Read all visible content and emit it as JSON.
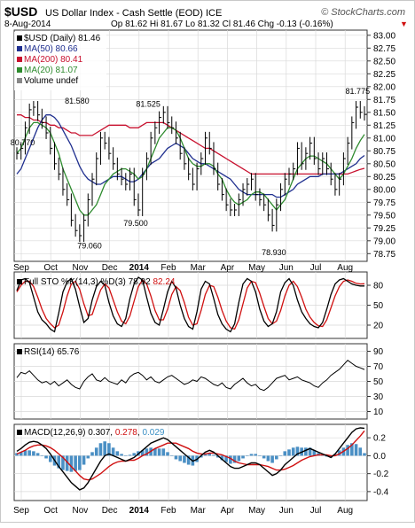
{
  "header": {
    "symbol": "$USD",
    "name": "US Dollar Index - Cash Settle (EOD) ICE",
    "brand": "© StockCharts.com",
    "date": "8-Aug-2014",
    "quote": "Op 81.62  Hi 81.67  Lo 81.32  Cl 81.46  Chg -0.13 (-0.16%)",
    "quote_arrow": "▼"
  },
  "legend": {
    "price": "$USD (Daily) 81.46",
    "ma50": "MA(50) 80.66",
    "ma200": "MA(200) 80.41",
    "ma20": "MA(20) 81.07",
    "volume": "Volume undef"
  },
  "indicators": {
    "sto_label": "Full STO %K(14,3) %D(3) ",
    "sto_k": "78.92",
    "sto_d": "82.24",
    "rsi_label": "RSI(14) 65.76",
    "macd_label": "MACD(12,26,9) ",
    "macd": "0.307",
    "signal": "0.278",
    "hist": "0.029"
  },
  "annotations": [
    {
      "text": "80.770",
      "x": 1,
      "y": 80.77
    },
    {
      "text": "81.580",
      "x": 14,
      "y": 81.58
    },
    {
      "text": "81.525",
      "x": 31,
      "y": 81.525
    },
    {
      "text": "79.060",
      "x": 17,
      "y": 79.06
    },
    {
      "text": "79.500",
      "x": 28,
      "y": 79.5
    },
    {
      "text": "78.930",
      "x": 61,
      "y": 78.93
    },
    {
      "text": "81.775",
      "x": 81,
      "y": 81.775
    }
  ],
  "month_labels": [
    "Sep",
    "Oct",
    "Nov",
    "Dec",
    "2014",
    "Feb",
    "Mar",
    "Apr",
    "May",
    "Jun",
    "Jul",
    "Aug"
  ],
  "colors": {
    "price_bar": "#000000",
    "ma50": "#1f2f8f",
    "ma200": "#c8102e",
    "ma20": "#2e8b2e",
    "pct_d": "#d01010",
    "hist": "#4a8fc4",
    "grid": "#d9d9d9"
  },
  "chart_data": [
    {
      "type": "line",
      "title": "$USD (Daily)",
      "x_ticks": [
        "Sep",
        "Oct",
        "Nov",
        "Dec",
        "2014",
        "Feb",
        "Mar",
        "Apr",
        "May",
        "Jun",
        "Jul",
        "Aug"
      ],
      "y_ticks": [
        78.75,
        79.0,
        79.25,
        79.5,
        79.75,
        80.0,
        80.25,
        80.5,
        80.75,
        81.0,
        81.25,
        81.5,
        81.75,
        82.0,
        82.25,
        82.5,
        82.75,
        83.0
      ],
      "ylim": [
        78.6,
        83.1
      ],
      "series": [
        {
          "name": "$USD",
          "values": [
            80.7,
            80.8,
            81.2,
            81.55,
            81.6,
            81.45,
            81.3,
            81.1,
            80.8,
            80.5,
            80.3,
            80.0,
            79.8,
            79.4,
            79.2,
            79.1,
            79.4,
            79.8,
            80.2,
            80.6,
            81.0,
            80.9,
            80.7,
            80.5,
            80.3,
            80.2,
            80.1,
            80.3,
            79.8,
            79.6,
            80.3,
            80.6,
            81.0,
            81.2,
            81.4,
            81.5,
            81.3,
            81.2,
            81.0,
            80.7,
            80.5,
            80.3,
            80.1,
            80.4,
            80.6,
            81.0,
            80.8,
            80.4,
            80.1,
            79.9,
            79.7,
            79.6,
            79.6,
            79.8,
            80.0,
            80.1,
            80.2,
            79.9,
            79.8,
            79.7,
            79.5,
            79.3,
            79.7,
            80.0,
            80.2,
            80.3,
            80.4,
            80.8,
            80.5,
            80.7,
            80.9,
            80.6,
            80.4,
            80.6,
            80.4,
            80.2,
            80.0,
            80.2,
            80.6,
            80.9,
            81.3,
            81.6,
            81.5,
            81.46
          ]
        },
        {
          "name": "MA(50)",
          "values": [
            80.3,
            80.4,
            80.6,
            80.8,
            81.0,
            81.2,
            81.35,
            81.45,
            81.45,
            81.4,
            81.3,
            81.15,
            81.0,
            80.85,
            80.65,
            80.45,
            80.3,
            80.2,
            80.15,
            80.1,
            80.1,
            80.15,
            80.2,
            80.25,
            80.25,
            80.25,
            80.2,
            80.15,
            80.15,
            80.2,
            80.3,
            80.4,
            80.5,
            80.55,
            80.6,
            80.7,
            80.8,
            80.85,
            80.9,
            80.85,
            80.8,
            80.7,
            80.6,
            80.55,
            80.5,
            80.5,
            80.45,
            80.4,
            80.35,
            80.3,
            80.25,
            80.2,
            80.1,
            80.0,
            79.95,
            79.9,
            79.9,
            79.9,
            79.9,
            79.9,
            79.9,
            79.9,
            79.85,
            79.85,
            79.9,
            79.95,
            80.0,
            80.1,
            80.15,
            80.2,
            80.25,
            80.25,
            80.25,
            80.3,
            80.3,
            80.3,
            80.3,
            80.3,
            80.35,
            80.4,
            80.45,
            80.5,
            80.6,
            80.66
          ]
        },
        {
          "name": "MA(200)",
          "values": [
            81.45,
            81.45,
            81.4,
            81.4,
            81.35,
            81.35,
            81.3,
            81.3,
            81.25,
            81.25,
            81.2,
            81.2,
            81.15,
            81.1,
            81.1,
            81.05,
            81.05,
            81.05,
            81.05,
            81.1,
            81.15,
            81.2,
            81.25,
            81.25,
            81.25,
            81.25,
            81.25,
            81.2,
            81.2,
            81.2,
            81.25,
            81.3,
            81.3,
            81.3,
            81.3,
            81.3,
            81.25,
            81.2,
            81.15,
            81.1,
            81.05,
            81.0,
            80.95,
            80.9,
            80.85,
            80.8,
            80.8,
            80.75,
            80.7,
            80.65,
            80.6,
            80.55,
            80.5,
            80.45,
            80.4,
            80.35,
            80.3,
            80.3,
            80.3,
            80.3,
            80.3,
            80.3,
            80.3,
            80.3,
            80.3,
            80.3,
            80.3,
            80.3,
            80.3,
            80.3,
            80.3,
            80.3,
            80.3,
            80.3,
            80.3,
            80.3,
            80.3,
            80.3,
            80.3,
            80.3,
            80.33,
            80.36,
            80.39,
            80.41
          ]
        },
        {
          "name": "MA(20)",
          "values": [
            80.7,
            80.8,
            81.0,
            81.2,
            81.3,
            81.3,
            81.25,
            81.2,
            81.1,
            80.9,
            80.7,
            80.4,
            80.2,
            80.0,
            79.8,
            79.6,
            79.5,
            79.5,
            79.6,
            79.7,
            79.9,
            80.1,
            80.2,
            80.3,
            80.35,
            80.4,
            80.4,
            80.35,
            80.3,
            80.2,
            80.25,
            80.4,
            80.6,
            80.8,
            81.0,
            81.1,
            81.2,
            81.2,
            81.15,
            81.0,
            80.8,
            80.6,
            80.5,
            80.45,
            80.45,
            80.5,
            80.5,
            80.45,
            80.3,
            80.2,
            80.0,
            79.85,
            79.75,
            79.7,
            79.75,
            79.8,
            79.9,
            79.95,
            79.95,
            79.9,
            79.8,
            79.7,
            79.6,
            79.7,
            79.8,
            80.0,
            80.2,
            80.4,
            80.5,
            80.6,
            80.65,
            80.65,
            80.6,
            80.55,
            80.5,
            80.4,
            80.3,
            80.2,
            80.3,
            80.45,
            80.6,
            80.8,
            80.95,
            81.07
          ]
        }
      ]
    },
    {
      "type": "line",
      "title": "Full STO %K(14,3) %D(3)",
      "y_ticks": [
        20,
        50,
        80
      ],
      "ylim": [
        0,
        100
      ],
      "series": [
        {
          "name": "%K",
          "values": [
            72,
            88,
            90,
            84,
            62,
            40,
            28,
            22,
            14,
            10,
            38,
            70,
            85,
            90,
            74,
            48,
            24,
            30,
            58,
            78,
            86,
            80,
            54,
            34,
            22,
            18,
            30,
            60,
            82,
            92,
            88,
            62,
            38,
            24,
            20,
            44,
            70,
            86,
            76,
            50,
            30,
            18,
            14,
            40,
            74,
            86,
            82,
            60,
            36,
            22,
            14,
            10,
            22,
            54,
            82,
            90,
            86,
            70,
            44,
            26,
            18,
            22,
            40,
            70,
            84,
            90,
            80,
            58,
            40,
            30,
            22,
            18,
            16,
            24,
            44,
            66,
            82,
            88,
            90,
            86,
            82,
            80,
            79,
            78.92
          ]
        },
        {
          "name": "%D",
          "values": [
            70,
            80,
            86,
            86,
            78,
            62,
            44,
            30,
            22,
            16,
            20,
            40,
            64,
            82,
            86,
            74,
            52,
            34,
            36,
            55,
            73,
            82,
            76,
            58,
            40,
            26,
            22,
            34,
            56,
            78,
            88,
            82,
            64,
            42,
            28,
            28,
            44,
            66,
            78,
            72,
            54,
            32,
            20,
            22,
            42,
            66,
            80,
            78,
            62,
            42,
            26,
            16,
            14,
            28,
            52,
            76,
            86,
            84,
            68,
            48,
            30,
            22,
            26,
            42,
            64,
            80,
            86,
            78,
            62,
            44,
            32,
            24,
            19,
            18,
            28,
            46,
            64,
            78,
            86,
            88,
            86,
            83,
            82,
            82.24
          ]
        }
      ]
    },
    {
      "type": "line",
      "title": "RSI(14)",
      "y_ticks": [
        10,
        30,
        50,
        70,
        90
      ],
      "ylim": [
        0,
        100
      ],
      "series": [
        {
          "name": "RSI",
          "values": [
            55,
            62,
            60,
            64,
            58,
            52,
            48,
            50,
            46,
            50,
            44,
            48,
            52,
            46,
            42,
            40,
            50,
            56,
            60,
            52,
            50,
            55,
            50,
            48,
            46,
            52,
            48,
            56,
            60,
            62,
            58,
            52,
            56,
            50,
            48,
            52,
            56,
            58,
            54,
            50,
            46,
            48,
            52,
            50,
            56,
            54,
            50,
            46,
            44,
            48,
            42,
            40,
            46,
            50,
            54,
            48,
            44,
            46,
            40,
            38,
            42,
            48,
            54,
            56,
            58,
            52,
            54,
            56,
            52,
            50,
            48,
            44,
            42,
            48,
            52,
            58,
            62,
            66,
            72,
            78,
            74,
            70,
            68,
            65.76
          ]
        }
      ]
    },
    {
      "type": "line",
      "title": "MACD(12,26,9)",
      "y_ticks": [
        -0.4,
        -0.2,
        0.0,
        0.2
      ],
      "ylim": [
        -0.5,
        0.35
      ],
      "series": [
        {
          "name": "MACD",
          "values": [
            0.05,
            0.08,
            0.12,
            0.15,
            0.16,
            0.15,
            0.12,
            0.08,
            0.02,
            -0.05,
            -0.12,
            -0.18,
            -0.24,
            -0.3,
            -0.34,
            -0.38,
            -0.36,
            -0.3,
            -0.22,
            -0.14,
            -0.06,
            0.0,
            0.02,
            0.0,
            -0.02,
            -0.04,
            -0.06,
            -0.04,
            -0.02,
            0.02,
            0.06,
            0.1,
            0.14,
            0.16,
            0.18,
            0.2,
            0.18,
            0.14,
            0.1,
            0.06,
            0.02,
            -0.02,
            -0.06,
            -0.04,
            0.0,
            0.04,
            0.06,
            0.04,
            0.0,
            -0.04,
            -0.08,
            -0.12,
            -0.14,
            -0.14,
            -0.12,
            -0.1,
            -0.08,
            -0.08,
            -0.1,
            -0.14,
            -0.18,
            -0.22,
            -0.2,
            -0.16,
            -0.1,
            -0.06,
            -0.02,
            0.02,
            0.04,
            0.06,
            0.08,
            0.06,
            0.04,
            0.02,
            0.0,
            -0.02,
            0.02,
            0.08,
            0.14,
            0.2,
            0.26,
            0.3,
            0.31,
            0.307
          ]
        },
        {
          "name": "Signal",
          "values": [
            0.02,
            0.04,
            0.06,
            0.09,
            0.11,
            0.12,
            0.12,
            0.11,
            0.09,
            0.06,
            0.02,
            -0.02,
            -0.07,
            -0.12,
            -0.17,
            -0.22,
            -0.26,
            -0.27,
            -0.26,
            -0.23,
            -0.2,
            -0.16,
            -0.12,
            -0.09,
            -0.07,
            -0.06,
            -0.06,
            -0.05,
            -0.05,
            -0.03,
            0.0,
            0.02,
            0.05,
            0.08,
            0.1,
            0.12,
            0.14,
            0.14,
            0.14,
            0.12,
            0.1,
            0.08,
            0.05,
            0.03,
            0.02,
            0.02,
            0.03,
            0.03,
            0.02,
            0.01,
            -0.01,
            -0.03,
            -0.06,
            -0.08,
            -0.09,
            -0.1,
            -0.1,
            -0.1,
            -0.1,
            -0.11,
            -0.12,
            -0.14,
            -0.16,
            -0.16,
            -0.15,
            -0.13,
            -0.11,
            -0.08,
            -0.05,
            -0.03,
            -0.01,
            0.0,
            0.01,
            0.01,
            0.01,
            0.0,
            0.0,
            0.02,
            0.05,
            0.08,
            0.12,
            0.17,
            0.22,
            0.278
          ]
        },
        {
          "name": "Histogram",
          "values": [
            0.03,
            0.04,
            0.06,
            0.06,
            0.05,
            0.03,
            0.0,
            -0.03,
            -0.07,
            -0.11,
            -0.14,
            -0.16,
            -0.17,
            -0.18,
            -0.17,
            -0.16,
            -0.1,
            -0.03,
            0.04,
            0.09,
            0.14,
            0.16,
            0.14,
            0.09,
            0.05,
            0.02,
            0.0,
            0.01,
            0.03,
            0.05,
            0.06,
            0.08,
            0.09,
            0.08,
            0.08,
            0.08,
            0.04,
            0.0,
            -0.04,
            -0.06,
            -0.08,
            -0.1,
            -0.11,
            -0.07,
            -0.02,
            0.02,
            0.03,
            0.01,
            -0.02,
            -0.05,
            -0.07,
            -0.09,
            -0.08,
            -0.06,
            -0.03,
            0.0,
            0.02,
            0.02,
            0.0,
            -0.03,
            -0.06,
            -0.08,
            -0.04,
            0.0,
            0.05,
            0.07,
            0.09,
            0.1,
            0.09,
            0.09,
            0.09,
            0.06,
            0.03,
            0.01,
            -0.01,
            -0.02,
            0.02,
            0.06,
            0.09,
            0.12,
            0.14,
            0.13,
            0.09,
            0.029
          ]
        }
      ]
    }
  ]
}
